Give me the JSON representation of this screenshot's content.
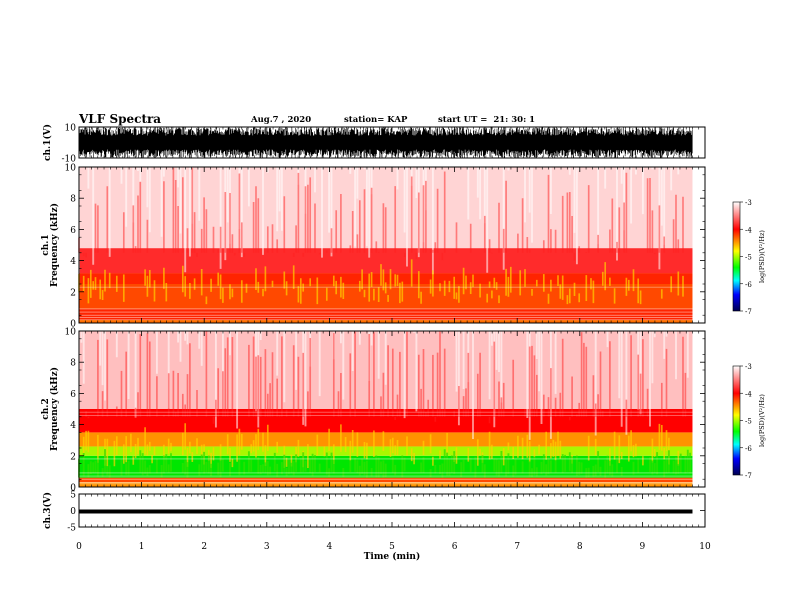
{
  "header": {
    "title": "VLF Spectra",
    "date": "Aug.7 , 2020",
    "station": "station= KAP",
    "start": "start UT =  21: 30: 1"
  },
  "colorbar": {
    "label": "log(PSD)(V²/Hz)",
    "ticks": [
      "-3",
      "-4",
      "-5",
      "-6",
      "-7"
    ],
    "colors": [
      "#ffffff",
      "#ff0000",
      "#ffff00",
      "#00ff00",
      "#00ffff",
      "#0000ff",
      "#000050"
    ]
  },
  "chart_data": [
    {
      "type": "line",
      "panel": "ch1-waveform",
      "ylabel": "ch.1(V)",
      "ylim": [
        -10,
        10
      ],
      "yticks": [
        "10",
        "-10"
      ],
      "xlim": [
        0,
        10
      ],
      "note_values": "signal saturates roughly between -10 and 10 V for entire record (0 to 9.8 min)",
      "envelope": {
        "x_end": 9.8,
        "min": -10,
        "max": 10
      }
    },
    {
      "type": "heatmap",
      "panel": "ch1-spectrogram",
      "ylabel": "ch.1\nFrequency (kHz)",
      "ylim": [
        0,
        10
      ],
      "yticks": [
        "0",
        "2",
        "4",
        "6",
        "8",
        "10"
      ],
      "xlim": [
        0,
        10
      ],
      "x_end": 9.8,
      "bands": [
        {
          "f_from": 0.0,
          "f_to": 0.2,
          "log_psd": -3.9
        },
        {
          "f_from": 0.2,
          "f_to": 0.9,
          "log_psd": -3.7
        },
        {
          "f_from": 0.9,
          "f_to": 2.5,
          "log_psd": -3.8
        },
        {
          "f_from": 2.5,
          "f_to": 3.2,
          "log_psd": -3.7
        },
        {
          "f_from": 3.2,
          "f_to": 4.8,
          "log_psd": -3.5
        },
        {
          "f_from": 4.8,
          "f_to": 10.0,
          "log_psd": -3.1
        }
      ]
    },
    {
      "type": "heatmap",
      "panel": "ch2-spectrogram",
      "ylabel": "ch.2\nFrequency (kHz)",
      "ylim": [
        0,
        10
      ],
      "yticks": [
        "0",
        "2",
        "4",
        "6",
        "8",
        "10"
      ],
      "xlim": [
        0,
        10
      ],
      "x_end": 9.8,
      "bands": [
        {
          "f_from": 0.0,
          "f_to": 0.3,
          "log_psd": -4.0
        },
        {
          "f_from": 0.3,
          "f_to": 0.6,
          "log_psd": -3.8
        },
        {
          "f_from": 0.6,
          "f_to": 2.0,
          "log_psd": -4.9
        },
        {
          "f_from": 2.0,
          "f_to": 2.6,
          "log_psd": -4.5
        },
        {
          "f_from": 2.6,
          "f_to": 3.5,
          "log_psd": -4.0
        },
        {
          "f_from": 3.5,
          "f_to": 5.0,
          "log_psd": -3.6
        },
        {
          "f_from": 5.0,
          "f_to": 10.0,
          "log_psd": -3.15
        }
      ]
    },
    {
      "type": "line",
      "panel": "ch3-waveform",
      "ylabel": "ch.3(V)",
      "ylim": [
        -5,
        5
      ],
      "yticks": [
        "5",
        "0",
        "-5"
      ],
      "xlim": [
        0,
        10
      ],
      "envelope": {
        "x_end": 9.8,
        "min": -0.3,
        "max": 0.3
      },
      "xlabel": "Time (min)",
      "xticks": [
        "0",
        "1",
        "2",
        "3",
        "4",
        "5",
        "6",
        "7",
        "8",
        "9",
        "10"
      ]
    }
  ]
}
